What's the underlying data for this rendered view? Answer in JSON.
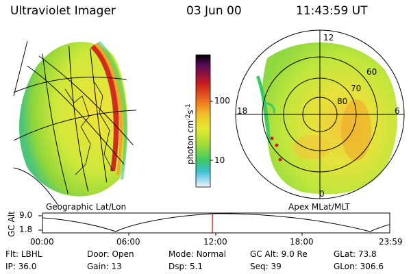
{
  "header": {
    "instrument": "Ultraviolet Imager",
    "date": "03 Jun 00",
    "time": "11:43:59 UT"
  },
  "panels": {
    "left_label": "Geographic Lat/Lon",
    "right_label": "Apex MLat/MLT"
  },
  "polar_grid": {
    "mlt_labels": [
      "12",
      "18",
      "6",
      "0"
    ],
    "mlat_labels": [
      "60",
      "70",
      "80"
    ]
  },
  "colorbar": {
    "unit_label": "photon cm",
    "unit_sup1": "-2",
    "unit_mid": "s",
    "unit_sup2": "-1",
    "ticks": [
      "100",
      "10"
    ],
    "scale": "log"
  },
  "altitude_plot": {
    "ylabel": "GC Alt",
    "yticks": [
      "9.0",
      "1.8"
    ],
    "xticks": [
      "00:00",
      "06:00",
      "12:00",
      "18:00",
      "23:59"
    ],
    "marker_time": "11:43:59",
    "marker_color": "#d00000"
  },
  "info": {
    "rows": [
      [
        {
          "label": "Flt:",
          "value": "LBHL"
        },
        {
          "label": "Door:",
          "value": "Open"
        },
        {
          "label": "Mode:",
          "value": "Normal"
        },
        {
          "label": "GC Alt:",
          "value": "9.0 Re"
        },
        {
          "label": "GLat:",
          "value": "73.8"
        }
      ],
      [
        {
          "label": "IP:",
          "value": "36.0"
        },
        {
          "label": "Gain:",
          "value": "13"
        },
        {
          "label": "Dsp:",
          "value": "5.1"
        },
        {
          "label": "Seq:",
          "value": "39"
        },
        {
          "label": "GLon:",
          "value": "306.6"
        }
      ]
    ]
  }
}
